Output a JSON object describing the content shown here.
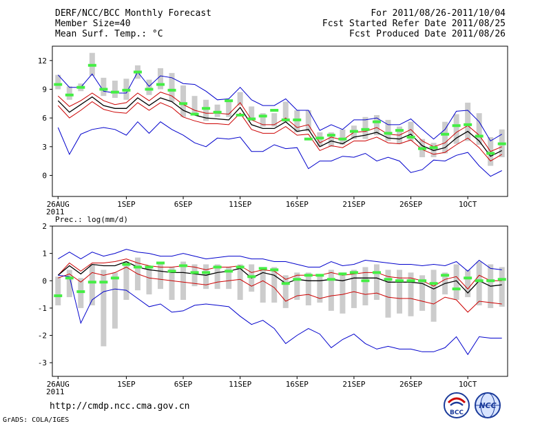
{
  "header": {
    "title": "DERF/NCC/BCC Monthly Forecast",
    "member_size": "Member Size=40",
    "variable1": "Mean Surf. Temp.: °C",
    "period": "For 2011/08/26-2011/10/04",
    "started": "Fcst Started Refer Date 2011/08/25",
    "produced": "Fcst Produced Date 2011/08/26"
  },
  "footer": {
    "url": "http://cmdp.ncc.cma.gov.cn",
    "grads": "GrADS: COLA/IGES",
    "logo1_text": "BCC",
    "logo2_text": "NCC"
  },
  "colors": {
    "max_line": "#0000cc",
    "min_line": "#0000cc",
    "upper_line": "#cc0000",
    "lower_line": "#cc0000",
    "mean_line": "#000000",
    "box": "#cccccc",
    "obs_marker": "#44ee44"
  },
  "chart_data": [
    {
      "type": "line",
      "title": "Mean Surf. Temp.: °C",
      "xlabel": "",
      "ylabel": "Mean Surf. Temp.: °C",
      "ylim": [
        -2.2,
        13.5
      ],
      "yticks": [
        0,
        3,
        6,
        9,
        12
      ],
      "xlim": [
        -0.5,
        39.5
      ],
      "xticks": [
        {
          "i": 0,
          "label": "26AUG",
          "sub": "2011"
        },
        {
          "i": 6,
          "label": "1SEP"
        },
        {
          "i": 11,
          "label": "6SEP"
        },
        {
          "i": 16,
          "label": "11SEP"
        },
        {
          "i": 21,
          "label": "16SEP"
        },
        {
          "i": 26,
          "label": "21SEP"
        },
        {
          "i": 31,
          "label": "26SEP"
        },
        {
          "i": 36,
          "label": "1OCT"
        }
      ],
      "series": [
        {
          "name": "max",
          "values": [
            10.5,
            9.2,
            9.2,
            10.6,
            8.8,
            8.6,
            8.6,
            10.8,
            9.3,
            10.4,
            10.2,
            9.6,
            9.5,
            8.8,
            7.9,
            8.0,
            9.2,
            7.9,
            7.3,
            7.3,
            8.0,
            6.8,
            6.8,
            4.7,
            5.3,
            4.8,
            5.8,
            5.8,
            6.0,
            5.3,
            5.3,
            5.9,
            4.8,
            3.8,
            4.8,
            6.7,
            6.8,
            5.6,
            3.6,
            4.3
          ]
        },
        {
          "name": "upper",
          "values": [
            8.3,
            7.2,
            7.8,
            8.6,
            7.8,
            7.4,
            7.6,
            8.6,
            7.8,
            8.7,
            8.3,
            7.4,
            6.8,
            6.5,
            6.5,
            6.4,
            7.6,
            5.8,
            5.3,
            5.3,
            6.0,
            5.0,
            5.3,
            3.4,
            4.0,
            3.7,
            4.5,
            4.6,
            5.0,
            4.3,
            4.2,
            4.8,
            3.6,
            3.0,
            3.4,
            4.5,
            5.2,
            4.2,
            2.5,
            3.0
          ]
        },
        {
          "name": "mean",
          "values": [
            7.8,
            6.6,
            7.4,
            8.2,
            7.3,
            7.0,
            7.0,
            8.1,
            7.3,
            8.1,
            7.7,
            6.8,
            6.3,
            6.0,
            5.9,
            5.8,
            7.1,
            5.3,
            4.9,
            4.9,
            5.6,
            4.6,
            4.8,
            3.0,
            3.6,
            3.3,
            4.0,
            4.2,
            4.5,
            3.9,
            3.8,
            4.3,
            3.1,
            2.6,
            2.9,
            3.9,
            4.6,
            3.6,
            2.0,
            2.6
          ]
        },
        {
          "name": "lower",
          "values": [
            7.3,
            6.0,
            6.8,
            7.7,
            6.9,
            6.6,
            6.5,
            7.6,
            6.8,
            7.6,
            7.1,
            6.1,
            5.7,
            5.4,
            5.4,
            5.3,
            6.5,
            4.8,
            4.4,
            4.4,
            5.1,
            4.2,
            4.3,
            2.6,
            3.1,
            2.9,
            3.6,
            3.6,
            4.0,
            3.4,
            3.3,
            3.7,
            2.7,
            2.2,
            2.4,
            3.2,
            3.9,
            2.9,
            1.5,
            2.2
          ]
        },
        {
          "name": "min",
          "values": [
            5.0,
            2.2,
            4.3,
            4.8,
            5.0,
            4.8,
            4.2,
            5.6,
            4.4,
            5.6,
            4.8,
            4.2,
            3.4,
            3.0,
            3.9,
            3.8,
            4.0,
            2.5,
            2.5,
            3.2,
            2.8,
            2.9,
            0.7,
            1.5,
            1.5,
            2.0,
            1.9,
            2.3,
            1.5,
            1.9,
            1.5,
            0.3,
            0.6,
            1.6,
            1.5,
            2.1,
            2.4,
            1.0,
            -0.1,
            0.5
          ]
        }
      ],
      "boxes": [
        [
          9,
          10.5
        ],
        [
          7.9,
          9.3
        ],
        [
          8.8,
          9.6
        ],
        [
          10.4,
          12.8
        ],
        [
          8.3,
          10.2
        ],
        [
          8.1,
          9.9
        ],
        [
          7.9,
          10.1
        ],
        [
          10.1,
          11.5
        ],
        [
          8.4,
          10
        ],
        [
          9.0,
          11.2
        ],
        [
          7.7,
          10.7
        ],
        [
          6.1,
          9.4
        ],
        [
          6.4,
          8.3
        ],
        [
          5.7,
          7.9
        ],
        [
          6.1,
          7.4
        ],
        [
          6.1,
          7.7
        ],
        [
          7.3,
          8.7
        ],
        [
          5.7,
          7.2
        ],
        [
          5.1,
          6.5
        ],
        [
          5.1,
          6.5
        ],
        [
          5.6,
          7.7
        ],
        [
          4.5,
          6.8
        ],
        [
          4.6,
          6.8
        ],
        [
          3.0,
          4.5
        ],
        [
          3.0,
          4.5
        ],
        [
          3.2,
          4.8
        ],
        [
          3.8,
          5.2
        ],
        [
          3.8,
          6.1
        ],
        [
          4.2,
          6.3
        ],
        [
          3.6,
          5.8
        ],
        [
          3.3,
          5.1
        ],
        [
          3.6,
          5.6
        ],
        [
          1.9,
          3.8
        ],
        [
          1.9,
          3.4
        ],
        [
          2.3,
          5.6
        ],
        [
          3.3,
          6.4
        ],
        [
          3.6,
          7.6
        ],
        [
          3.2,
          6.5
        ],
        [
          1.0,
          4.0
        ],
        [
          1.9,
          4.8
        ]
      ],
      "obs": [
        9.5,
        8.4,
        9.2,
        11.5,
        9.0,
        8.7,
        8.9,
        10.8,
        9.0,
        9.5,
        8.9,
        7.5,
        6.4,
        7.0,
        6.6,
        7.8,
        6.3,
        5.9,
        6.2,
        6.8,
        5.8,
        5.8,
        3.8,
        3.9,
        4.2,
        3.8,
        4.6,
        4.8,
        5.6,
        4.4,
        4.7,
        4.0,
        2.8,
        2.9,
        4.3,
        5.2,
        5.3,
        4.1,
        2.3,
        3.3
      ]
    },
    {
      "type": "line",
      "title": "Prec.: log(mm/d)",
      "xlabel": "",
      "ylabel": "Prec.: log(mm/d)",
      "ylim": [
        -3.5,
        2.0
      ],
      "yticks": [
        -3,
        -2,
        -1,
        0,
        1,
        2
      ],
      "xlim": [
        -0.5,
        39.5
      ],
      "xticks": [
        {
          "i": 0,
          "label": "26AUG",
          "sub": "2011"
        },
        {
          "i": 6,
          "label": "1SEP"
        },
        {
          "i": 11,
          "label": "6SEP"
        },
        {
          "i": 16,
          "label": "11SEP"
        },
        {
          "i": 21,
          "label": "16SEP"
        },
        {
          "i": 26,
          "label": "21SEP"
        },
        {
          "i": 31,
          "label": "26SEP"
        },
        {
          "i": 36,
          "label": "1OCT"
        }
      ],
      "series": [
        {
          "name": "max",
          "values": [
            0.8,
            1.05,
            0.8,
            1.05,
            0.9,
            1.0,
            1.15,
            1.05,
            1.0,
            0.9,
            0.9,
            1.0,
            0.9,
            0.8,
            0.85,
            0.9,
            0.9,
            0.8,
            0.8,
            0.7,
            0.7,
            0.6,
            0.5,
            0.5,
            0.7,
            0.55,
            0.6,
            0.75,
            0.7,
            0.65,
            0.6,
            0.6,
            0.55,
            0.6,
            0.55,
            0.7,
            0.35,
            0.75,
            0.45,
            0.4
          ]
        },
        {
          "name": "upper",
          "values": [
            0.2,
            0.65,
            0.35,
            0.65,
            0.65,
            0.7,
            0.8,
            0.65,
            0.55,
            0.5,
            0.5,
            0.55,
            0.5,
            0.4,
            0.5,
            0.5,
            0.55,
            0.3,
            0.4,
            0.35,
            0.05,
            0.2,
            0.2,
            0.2,
            0.3,
            0.2,
            0.25,
            0.3,
            0.3,
            0.15,
            0.1,
            0.1,
            0.0,
            -0.2,
            0.05,
            0.15,
            -0.3,
            0.2,
            0.0,
            0.0
          ]
        },
        {
          "name": "mean",
          "values": [
            0.2,
            0.55,
            0.25,
            0.6,
            0.55,
            0.55,
            0.7,
            0.5,
            0.4,
            0.35,
            0.3,
            0.3,
            0.25,
            0.2,
            0.3,
            0.35,
            0.45,
            0.1,
            0.3,
            0.2,
            -0.1,
            0.05,
            0.0,
            0.0,
            0.05,
            0.0,
            0.1,
            0.1,
            0.1,
            -0.05,
            -0.05,
            -0.05,
            -0.1,
            -0.3,
            -0.1,
            0.0,
            -0.45,
            0.0,
            -0.2,
            -0.15
          ]
        },
        {
          "name": "lower",
          "values": [
            0.1,
            0.25,
            -0.05,
            0.3,
            0.2,
            0.3,
            0.5,
            0.25,
            0.1,
            0.05,
            0.0,
            -0.05,
            -0.1,
            -0.15,
            -0.05,
            0.0,
            0.05,
            -0.2,
            0.0,
            -0.25,
            -0.75,
            -0.55,
            -0.5,
            -0.65,
            -0.55,
            -0.5,
            -0.4,
            -0.5,
            -0.45,
            -0.6,
            -0.65,
            -0.65,
            -0.75,
            -0.85,
            -0.6,
            -0.7,
            -1.15,
            -0.75,
            -0.8,
            -0.85
          ]
        },
        {
          "name": "min",
          "values": [
            0.2,
            0.15,
            -1.55,
            -0.7,
            -0.4,
            -0.3,
            -0.35,
            -0.65,
            -0.95,
            -0.85,
            -1.15,
            -1.1,
            -0.9,
            -0.85,
            -0.9,
            -0.95,
            -1.3,
            -1.6,
            -1.45,
            -1.75,
            -2.3,
            -2.0,
            -1.75,
            -1.95,
            -2.45,
            -2.15,
            -1.95,
            -2.3,
            -2.5,
            -2.4,
            -2.5,
            -2.5,
            -2.6,
            -2.6,
            -2.45,
            -2.05,
            -2.7,
            -2.05,
            -2.1,
            -2.1
          ]
        }
      ],
      "boxes": [
        [
          -0.9,
          0.15
        ],
        [
          -0.6,
          0.4
        ],
        [
          -1.0,
          0.1
        ],
        [
          -0.9,
          0.6
        ],
        [
          -2.4,
          0.4
        ],
        [
          -1.75,
          0.3
        ],
        [
          -0.7,
          0.7
        ],
        [
          -0.35,
          0.85
        ],
        [
          -0.5,
          0.5
        ],
        [
          -0.3,
          0.7
        ],
        [
          -0.7,
          0.5
        ],
        [
          -0.7,
          0.7
        ],
        [
          -0.2,
          0.6
        ],
        [
          -0.3,
          0.6
        ],
        [
          -0.3,
          0.6
        ],
        [
          -0.3,
          0.5
        ],
        [
          -0.7,
          0.6
        ],
        [
          -0.4,
          0.6
        ],
        [
          -0.8,
          0.5
        ],
        [
          -0.8,
          0.5
        ],
        [
          -1.0,
          0.2
        ],
        [
          -0.7,
          0.3
        ],
        [
          -0.9,
          0.3
        ],
        [
          -0.8,
          0.2
        ],
        [
          -1.1,
          0.4
        ],
        [
          -1.2,
          0.3
        ],
        [
          -1.0,
          0.4
        ],
        [
          -0.9,
          0.5
        ],
        [
          -0.7,
          0.6
        ],
        [
          -1.35,
          0.4
        ],
        [
          -1.2,
          0.4
        ],
        [
          -1.3,
          0.3
        ],
        [
          -1.1,
          0.2
        ],
        [
          -1.5,
          0.4
        ],
        [
          -0.5,
          0.3
        ],
        [
          -0.7,
          0.6
        ],
        [
          -0.6,
          0.4
        ],
        [
          -0.9,
          0.7
        ],
        [
          -1.0,
          0.6
        ],
        [
          -0.95,
          0.5
        ]
      ],
      "obs": [
        -0.55,
        0.1,
        -0.4,
        -0.05,
        -0.05,
        0.1,
        0.6,
        0.5,
        0.5,
        0.65,
        0.35,
        0.55,
        0.3,
        0.3,
        0.5,
        0.35,
        0.5,
        0.15,
        0.45,
        0.4,
        -0.1,
        0.05,
        0.2,
        0.2,
        0.05,
        0.25,
        0.3,
        0.0,
        0.3,
        0.05,
        0.0,
        0.0,
        0.0,
        -0.1,
        0.2,
        -0.3,
        0.1,
        0.0,
        0.0,
        0.05
      ]
    }
  ]
}
